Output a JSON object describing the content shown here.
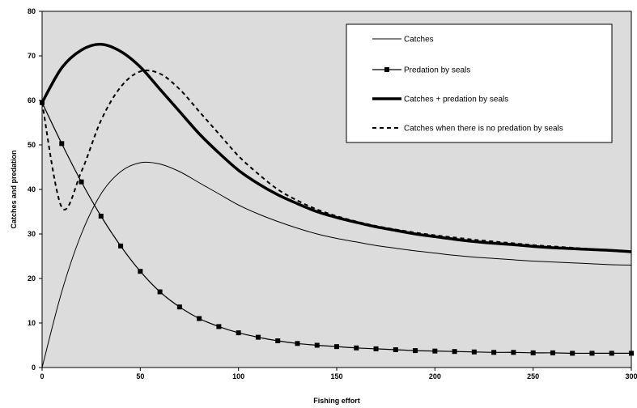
{
  "chart_data": {
    "type": "line",
    "title": "",
    "xlabel": "Fishing effort",
    "ylabel": "Catches and predation",
    "xlim": [
      0,
      300
    ],
    "ylim": [
      0,
      80
    ],
    "xticks": [
      0,
      50,
      100,
      150,
      200,
      250,
      300
    ],
    "yticks": [
      0,
      10,
      20,
      30,
      40,
      50,
      60,
      70,
      80
    ],
    "grid": false,
    "plot_background": "#dcdcdc",
    "legend_position": "top-right",
    "series": [
      {
        "name": "Catches",
        "style": "thin",
        "x": [
          0,
          10,
          20,
          30,
          40,
          50,
          60,
          70,
          80,
          90,
          100,
          110,
          120,
          130,
          140,
          150,
          160,
          170,
          180,
          190,
          200,
          210,
          220,
          230,
          240,
          250,
          260,
          270,
          280,
          290,
          300
        ],
        "values": [
          0,
          17,
          30,
          39,
          44,
          46,
          45.7,
          44,
          41.5,
          39,
          36.5,
          34.5,
          32.8,
          31.3,
          30,
          29,
          28.2,
          27.4,
          26.8,
          26.2,
          25.7,
          25.2,
          24.8,
          24.5,
          24.2,
          23.9,
          23.7,
          23.5,
          23.3,
          23.1,
          23
        ]
      },
      {
        "name": "Predation by seals",
        "style": "markers",
        "x": [
          0,
          10,
          20,
          30,
          40,
          50,
          60,
          70,
          80,
          90,
          100,
          110,
          120,
          130,
          140,
          150,
          160,
          170,
          180,
          190,
          200,
          210,
          220,
          230,
          240,
          250,
          260,
          270,
          280,
          290,
          300
        ],
        "values": [
          59.5,
          50.3,
          41.7,
          34,
          27.3,
          21.6,
          17,
          13.6,
          11,
          9.2,
          7.8,
          6.8,
          6,
          5.4,
          5,
          4.7,
          4.4,
          4.2,
          4,
          3.8,
          3.7,
          3.6,
          3.5,
          3.4,
          3.4,
          3.3,
          3.3,
          3.2,
          3.2,
          3.2,
          3.2
        ]
      },
      {
        "name": "Catches + predation by seals",
        "style": "thick",
        "x": [
          0,
          10,
          20,
          30,
          40,
          50,
          60,
          70,
          80,
          90,
          100,
          110,
          120,
          130,
          140,
          150,
          160,
          170,
          180,
          190,
          200,
          210,
          220,
          230,
          240,
          250,
          260,
          270,
          280,
          290,
          300
        ],
        "values": [
          59.5,
          67.3,
          71.3,
          72.6,
          71,
          67.5,
          62.5,
          57.5,
          52.5,
          48.2,
          44.3,
          41.3,
          38.8,
          36.8,
          35,
          33.7,
          32.6,
          31.6,
          30.8,
          30,
          29.4,
          28.8,
          28.3,
          27.9,
          27.6,
          27.2,
          26.9,
          26.7,
          26.5,
          26.3,
          26
        ]
      },
      {
        "name": "Catches when there is no predation by seals",
        "style": "dashed",
        "x": [
          0,
          10,
          20,
          30,
          40,
          50,
          60,
          70,
          80,
          90,
          100,
          110,
          120,
          130,
          140,
          150,
          160,
          170,
          180,
          190,
          200,
          210,
          220,
          230,
          240,
          250,
          260,
          270,
          280,
          290,
          300
        ],
        "values": [
          59.5,
          36,
          44,
          55.5,
          63,
          66.5,
          66,
          62.5,
          57.5,
          52.5,
          47.5,
          43.5,
          40,
          37.5,
          35.5,
          34,
          32.8,
          31.8,
          31,
          30.3,
          29.7,
          29.2,
          28.7,
          28.3,
          27.9,
          27.5,
          27.2,
          26.9,
          26.6,
          26.3,
          26
        ]
      }
    ]
  }
}
